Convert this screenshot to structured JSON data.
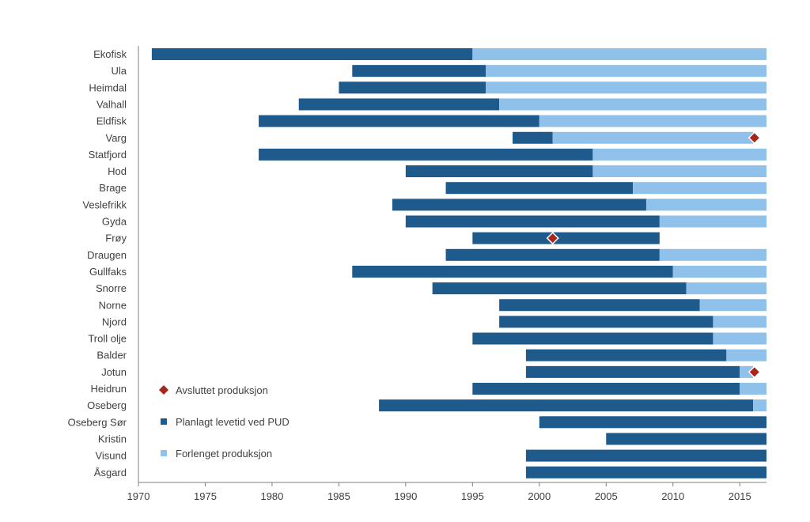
{
  "chart_data": {
    "type": "bar",
    "orientation": "horizontal-range",
    "title": "",
    "xlabel": "",
    "ylabel": "",
    "xlim": [
      1970,
      2017
    ],
    "xticks": [
      1970,
      1975,
      1980,
      1985,
      1990,
      1995,
      2000,
      2005,
      2010,
      2015
    ],
    "grid": false,
    "legend_position": "bottom-left",
    "colors": {
      "planned": "#1f5a8c",
      "extended": "#8fc1ea",
      "ended_marker": "#a6261c",
      "axis": "#7f7f7f",
      "text": "#404040"
    },
    "legend": [
      {
        "key": "ended",
        "label": "Avsluttet produksjon"
      },
      {
        "key": "planned",
        "label": "Planlagt levetid ved PUD"
      },
      {
        "key": "extended",
        "label": "Forlenget produksjon"
      }
    ],
    "categories": [
      {
        "name": "Ekofisk",
        "start": 1971,
        "planned_end": 1995,
        "extended_end": 2017,
        "ended": null
      },
      {
        "name": "Ula",
        "start": 1986,
        "planned_end": 1996,
        "extended_end": 2017,
        "ended": null
      },
      {
        "name": "Heimdal",
        "start": 1985,
        "planned_end": 1996,
        "extended_end": 2017,
        "ended": null
      },
      {
        "name": "Valhall",
        "start": 1982,
        "planned_end": 1997,
        "extended_end": 2017,
        "ended": null
      },
      {
        "name": "Eldfisk",
        "start": 1979,
        "planned_end": 2000,
        "extended_end": 2017,
        "ended": null
      },
      {
        "name": "Varg",
        "start": 1998,
        "planned_end": 2001,
        "extended_end": 2016,
        "ended": 2016.1
      },
      {
        "name": "Statfjord",
        "start": 1979,
        "planned_end": 2004,
        "extended_end": 2017,
        "ended": null
      },
      {
        "name": "Hod",
        "start": 1990,
        "planned_end": 2004,
        "extended_end": 2017,
        "ended": null
      },
      {
        "name": "Brage",
        "start": 1993,
        "planned_end": 2007,
        "extended_end": 2017,
        "ended": null
      },
      {
        "name": "Veslefrikk",
        "start": 1989,
        "planned_end": 2008,
        "extended_end": 2017,
        "ended": null
      },
      {
        "name": "Gyda",
        "start": 1990,
        "planned_end": 2009,
        "extended_end": 2017,
        "ended": null
      },
      {
        "name": "Frøy",
        "start": 1995,
        "planned_end": 2009,
        "extended_end": 2009,
        "ended": 2001
      },
      {
        "name": "Draugen",
        "start": 1993,
        "planned_end": 2009,
        "extended_end": 2017,
        "ended": null
      },
      {
        "name": "Gullfaks",
        "start": 1986,
        "planned_end": 2010,
        "extended_end": 2017,
        "ended": null
      },
      {
        "name": "Snorre",
        "start": 1992,
        "planned_end": 2011,
        "extended_end": 2017,
        "ended": null
      },
      {
        "name": "Norne",
        "start": 1997,
        "planned_end": 2012,
        "extended_end": 2017,
        "ended": null
      },
      {
        "name": "Njord",
        "start": 1997,
        "planned_end": 2013,
        "extended_end": 2017,
        "ended": null
      },
      {
        "name": "Troll olje",
        "start": 1995,
        "planned_end": 2013,
        "extended_end": 2017,
        "ended": null
      },
      {
        "name": "Balder",
        "start": 1999,
        "planned_end": 2014,
        "extended_end": 2017,
        "ended": null
      },
      {
        "name": "Jotun",
        "start": 1999,
        "planned_end": 2015,
        "extended_end": 2016,
        "ended": 2016.1
      },
      {
        "name": "Heidrun",
        "start": 1995,
        "planned_end": 2015,
        "extended_end": 2017,
        "ended": null
      },
      {
        "name": "Oseberg",
        "start": 1988,
        "planned_end": 2016,
        "extended_end": 2017,
        "ended": null
      },
      {
        "name": "Oseberg Sør",
        "start": 2000,
        "planned_end": 2017,
        "extended_end": 2017,
        "ended": null
      },
      {
        "name": "Kristin",
        "start": 2005,
        "planned_end": 2017,
        "extended_end": 2017,
        "ended": null
      },
      {
        "name": "Visund",
        "start": 1999,
        "planned_end": 2017,
        "extended_end": 2017,
        "ended": null
      },
      {
        "name": "Åsgard",
        "start": 1999,
        "planned_end": 2017,
        "extended_end": 2017,
        "ended": null
      }
    ]
  }
}
